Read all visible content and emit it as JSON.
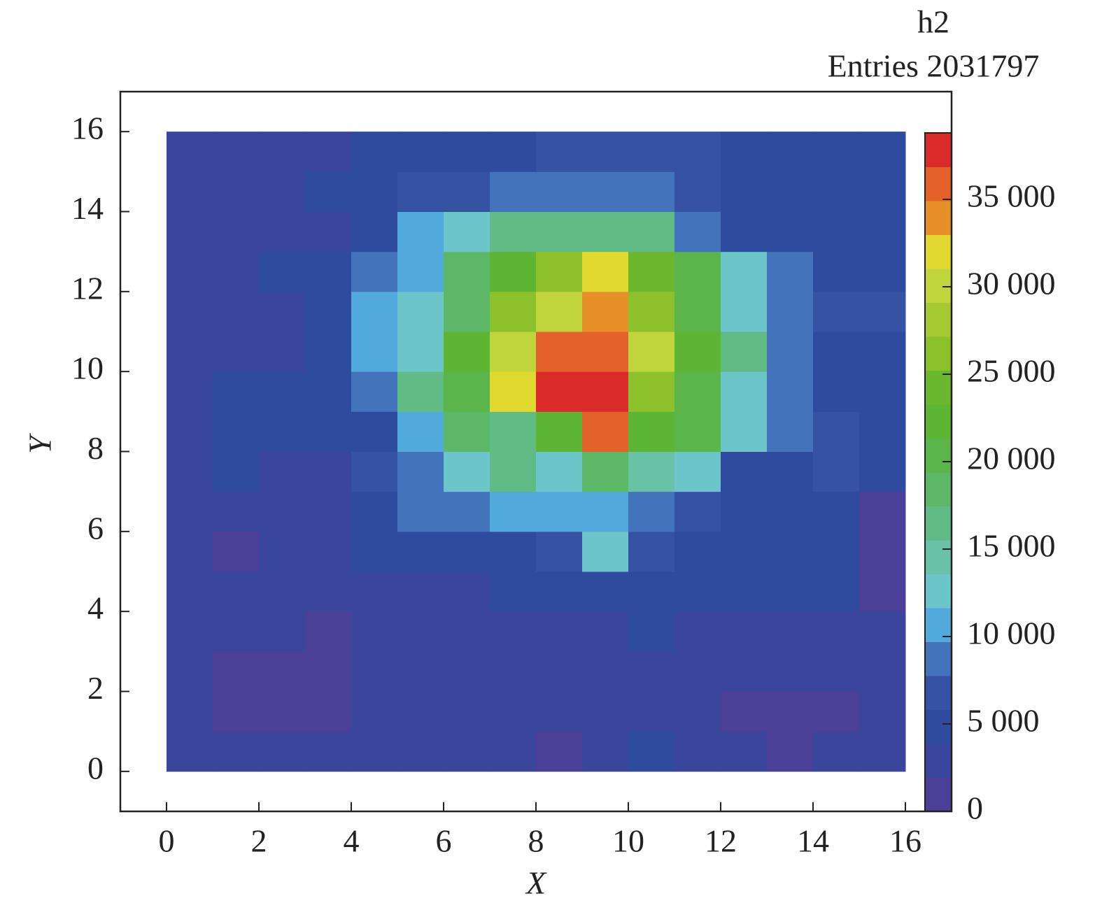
{
  "chart_data": {
    "type": "heatmap",
    "stats_title": "h2",
    "stats_text": "Entries 2031797",
    "xlabel": "X",
    "ylabel": "Y",
    "xbins": [
      0,
      1,
      2,
      3,
      4,
      5,
      6,
      7,
      8,
      9,
      10,
      11,
      12,
      13,
      14,
      15,
      16
    ],
    "ybins": [
      0,
      1,
      2,
      3,
      4,
      5,
      6,
      7,
      8,
      9,
      10,
      11,
      12,
      13,
      14,
      15,
      16
    ],
    "z": [
      [
        3000,
        3000,
        3000,
        3000,
        3000,
        3000,
        3000,
        3000,
        1000,
        3000,
        5000,
        3000,
        3000,
        1000,
        3000,
        3000
      ],
      [
        3000,
        1000,
        1000,
        1000,
        3000,
        3000,
        3000,
        3000,
        3000,
        3000,
        3000,
        3000,
        1000,
        1000,
        1000,
        3000
      ],
      [
        3000,
        1000,
        1000,
        1000,
        3000,
        3000,
        3000,
        3000,
        3000,
        3000,
        3000,
        3000,
        3000,
        3000,
        3000,
        3000
      ],
      [
        3000,
        3000,
        3000,
        1000,
        3000,
        3000,
        3000,
        3000,
        3000,
        3000,
        5000,
        3000,
        3000,
        3000,
        3000,
        3000
      ],
      [
        3000,
        3000,
        3000,
        3000,
        3000,
        3000,
        3000,
        5000,
        5000,
        5000,
        5000,
        5000,
        5000,
        5000,
        5000,
        1000
      ],
      [
        3000,
        1000,
        3000,
        3000,
        5000,
        5000,
        5000,
        5000,
        6800,
        12600,
        6800,
        5000,
        5000,
        5000,
        5000,
        1000
      ],
      [
        3000,
        3000,
        3000,
        3000,
        5000,
        8700,
        8700,
        10700,
        10700,
        10700,
        8700,
        6800,
        5000,
        5000,
        5000,
        1000
      ],
      [
        3000,
        5000,
        3000,
        3000,
        6800,
        8700,
        12600,
        16500,
        12600,
        18400,
        14500,
        12600,
        5000,
        5000,
        6800,
        5000
      ],
      [
        3000,
        5000,
        5000,
        5000,
        5000,
        10700,
        18400,
        16500,
        22300,
        35900,
        22300,
        20400,
        12600,
        8700,
        6800,
        5000
      ],
      [
        3000,
        5000,
        5000,
        5000,
        8700,
        16500,
        20400,
        32000,
        37800,
        37800,
        26200,
        20400,
        12600,
        8700,
        5000,
        5000
      ],
      [
        3000,
        3000,
        3000,
        5000,
        10700,
        12600,
        22300,
        30100,
        35900,
        35900,
        30100,
        22300,
        16500,
        8700,
        5000,
        5000
      ],
      [
        3000,
        3000,
        3000,
        5000,
        10700,
        12600,
        18400,
        26200,
        30100,
        34000,
        26200,
        20400,
        12600,
        8700,
        6800,
        6800
      ],
      [
        3000,
        3000,
        5000,
        5000,
        8700,
        10700,
        18400,
        22300,
        26200,
        32000,
        24200,
        20400,
        12600,
        8700,
        5000,
        5000
      ],
      [
        3000,
        3000,
        3000,
        3000,
        5000,
        10700,
        12600,
        16500,
        16500,
        16500,
        16500,
        8700,
        5000,
        5000,
        5000,
        5000
      ],
      [
        3000,
        3000,
        3000,
        5000,
        5000,
        6800,
        6800,
        8700,
        8700,
        8700,
        8700,
        6800,
        5000,
        5000,
        5000,
        5000
      ],
      [
        3000,
        3000,
        3000,
        3000,
        5000,
        5000,
        5000,
        5000,
        6800,
        6800,
        6800,
        6800,
        5000,
        5000,
        5000,
        5000
      ]
    ],
    "colors": [
      "#4b3f97",
      "#3a469b",
      "#2f4b9e",
      "#3652a2",
      "#4273bb",
      "#52a9db",
      "#6cc5c9",
      "#6ac2a6",
      "#60bb84",
      "#5cb866",
      "#5bb54b",
      "#5cb533",
      "#6bb82e",
      "#8cc12b",
      "#a5c930",
      "#c0d43b",
      "#e1d830",
      "#e89028",
      "#e4612a",
      "#da2a2a"
    ],
    "xlim": [
      -1,
      17
    ],
    "ylim": [
      -1,
      17
    ],
    "xticks": [
      0,
      2,
      4,
      6,
      8,
      10,
      12,
      14,
      16
    ],
    "yticks": [
      0,
      2,
      4,
      6,
      8,
      10,
      12,
      14,
      16
    ],
    "zlim": [
      0,
      38800
    ],
    "zticks": [
      0,
      {
        "value": 5000,
        "label": "5 000"
      },
      {
        "value": 10000,
        "label": "10 000"
      },
      {
        "value": 15000,
        "label": "15 000"
      },
      {
        "value": 20000,
        "label": "20 000"
      },
      {
        "value": 25000,
        "label": "25 000"
      },
      {
        "value": 30000,
        "label": "30 000"
      },
      {
        "value": 35000,
        "label": "35 000"
      }
    ]
  }
}
